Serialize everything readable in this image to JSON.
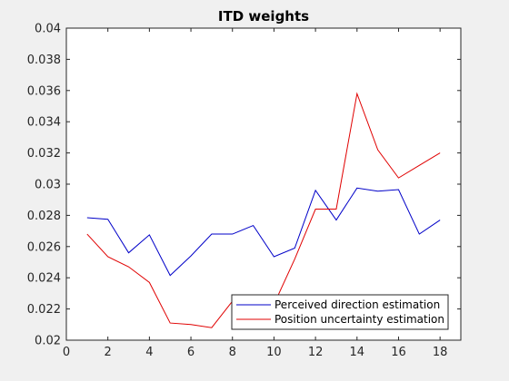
{
  "chart_data": {
    "type": "line",
    "title": "ITD weights",
    "xlabel": "",
    "ylabel": "",
    "xlim": [
      0,
      19
    ],
    "ylim": [
      0.02,
      0.04
    ],
    "xticks": [
      0,
      2,
      4,
      6,
      8,
      10,
      12,
      14,
      16,
      18
    ],
    "yticks": [
      0.02,
      0.022,
      0.024,
      0.026,
      0.028,
      0.03,
      0.032,
      0.034,
      0.036,
      0.038,
      0.04
    ],
    "xtick_labels": [
      "0",
      "2",
      "4",
      "6",
      "8",
      "10",
      "12",
      "14",
      "16",
      "18"
    ],
    "ytick_labels": [
      "0.02",
      "0.022",
      "0.024",
      "0.026",
      "0.028",
      "0.03",
      "0.032",
      "0.034",
      "0.036",
      "0.038",
      "0.04"
    ],
    "x": [
      1,
      2,
      3,
      4,
      5,
      6,
      7,
      8,
      9,
      10,
      11,
      12,
      13,
      14,
      15,
      16,
      17,
      18
    ],
    "series": [
      {
        "name": "Perceived direction estimation",
        "color": "#0000c8",
        "values": [
          0.02785,
          0.02775,
          0.0256,
          0.02675,
          0.02415,
          0.0254,
          0.0268,
          0.0268,
          0.02735,
          0.02535,
          0.0259,
          0.0296,
          0.0277,
          0.02975,
          0.02955,
          0.02965,
          0.0268,
          0.0277
        ]
      },
      {
        "name": "Position uncertainty estimation",
        "color": "#e00000",
        "values": [
          0.0268,
          0.02535,
          0.0247,
          0.0237,
          0.0211,
          0.021,
          0.0208,
          0.0225,
          0.0228,
          0.0223,
          0.0252,
          0.0284,
          0.0284,
          0.0358,
          0.0322,
          0.0304,
          0.0312,
          0.032
        ]
      }
    ],
    "grid": false,
    "legend_position": "bottom-right"
  }
}
